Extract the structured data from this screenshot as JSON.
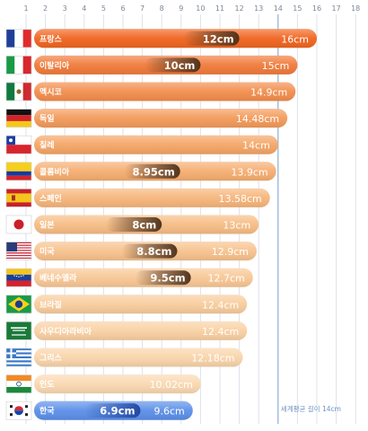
{
  "chart_data": {
    "type": "bar",
    "axis": {
      "ticks": [
        "1",
        "2",
        "3",
        "4",
        "5",
        "6",
        "7",
        "8",
        "9",
        "10",
        "11",
        "12",
        "13",
        "14",
        "15",
        "16",
        "17",
        "18"
      ],
      "xlim": [
        0.5,
        18.5
      ],
      "grid": true
    },
    "average": {
      "value": 14,
      "label": "세계평균 길이 14cm"
    },
    "unit": "cm",
    "countries": [
      {
        "name": "프랑스",
        "flag": "france",
        "total": 16,
        "total_label": "16cm",
        "erect": 12,
        "erect_label": "12cm",
        "color": "#F0641E"
      },
      {
        "name": "이탈리아",
        "flag": "italy",
        "total": 15,
        "total_label": "15cm",
        "erect": 10,
        "erect_label": "10cm",
        "color": "#F07A3A"
      },
      {
        "name": "멕시코",
        "flag": "mexico",
        "total": 14.9,
        "total_label": "14.9cm",
        "erect": null,
        "erect_label": null,
        "color": "#F28D4C"
      },
      {
        "name": "독일",
        "flag": "germany",
        "total": 14.48,
        "total_label": "14.48cm",
        "erect": null,
        "erect_label": null,
        "color": "#F39A5A"
      },
      {
        "name": "칠레",
        "flag": "chile",
        "total": 14,
        "total_label": "14cm",
        "erect": null,
        "erect_label": null,
        "color": "#F4A566"
      },
      {
        "name": "콜롬비아",
        "flag": "colombia",
        "total": 13.9,
        "total_label": "13.9cm",
        "erect": 8.95,
        "erect_label": "8.95cm",
        "color": "#F5AD70"
      },
      {
        "name": "스페인",
        "flag": "spain",
        "total": 13.58,
        "total_label": "13.58cm",
        "erect": null,
        "erect_label": null,
        "color": "#F6B57A"
      },
      {
        "name": "일본",
        "flag": "japan",
        "total": 13,
        "total_label": "13cm",
        "erect": 8,
        "erect_label": "8cm",
        "color": "#F6BC84"
      },
      {
        "name": "미국",
        "flag": "usa",
        "total": 12.9,
        "total_label": "12.9cm",
        "erect": 8.8,
        "erect_label": "8.8cm",
        "color": "#F7C28D"
      },
      {
        "name": "베네수엘라",
        "flag": "venezuela",
        "total": 12.7,
        "total_label": "12.7cm",
        "erect": 9.5,
        "erect_label": "9.5cm",
        "color": "#F8C795"
      },
      {
        "name": "브라질",
        "flag": "brazil",
        "total": 12.4,
        "total_label": "12.4cm",
        "erect": null,
        "erect_label": null,
        "color": "#F8CC9C"
      },
      {
        "name": "사우디아라비아",
        "flag": "saudi",
        "total": 12.4,
        "total_label": "12.4cm",
        "erect": null,
        "erect_label": null,
        "color": "#F9D0A3"
      },
      {
        "name": "그리스",
        "flag": "greece",
        "total": 12.18,
        "total_label": "12.18cm",
        "erect": null,
        "erect_label": null,
        "color": "#F9D4AA"
      },
      {
        "name": "인도",
        "flag": "india",
        "total": 10.02,
        "total_label": "10.02cm",
        "erect": null,
        "erect_label": null,
        "color": "#FAD8B1"
      },
      {
        "name": "한국",
        "flag": "korea",
        "total": 9.6,
        "total_label": "9.6cm",
        "erect": 6.9,
        "erect_label": "6.9cm",
        "color": "#5B8FE8"
      }
    ]
  }
}
